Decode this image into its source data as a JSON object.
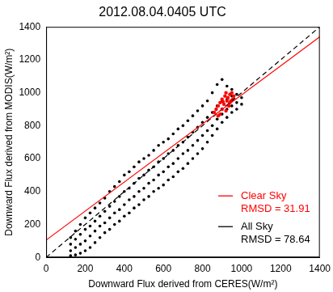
{
  "chart_data": {
    "type": "scatter",
    "title": "2012.08.04.0405 UTC",
    "x_label": "Downward Flux derived from CERES(W/m²)",
    "y_label": "Downward Flux derived from MODIS(W/m²)",
    "xlim": [
      0,
      1400
    ],
    "xticks": [
      0,
      200,
      400,
      600,
      800,
      1000,
      1200,
      1400
    ],
    "ylim": [
      0,
      1400
    ],
    "yticks": [
      0,
      200,
      400,
      600,
      800,
      1000,
      1200,
      1400
    ],
    "grid": false,
    "legend": "lower right",
    "series": [
      {
        "type": "line",
        "color": "#ff0000",
        "line_style": "solid",
        "values": [
          [
            0,
            105
          ],
          [
            1400,
            1340
          ]
        ]
      },
      {
        "type": "line",
        "color": "#000000",
        "line_style": "dashed",
        "values": [
          [
            0,
            0
          ],
          [
            1400,
            1400
          ]
        ]
      },
      {
        "name": "Clear Sky",
        "type": "scatter",
        "color": "#ff0000",
        "marker": "circle",
        "annotation": "RMSD = 31.91",
        "values": [
          [
            860,
            880
          ],
          [
            870,
            900
          ],
          [
            880,
            920
          ],
          [
            890,
            870
          ],
          [
            890,
            940
          ],
          [
            900,
            900
          ],
          [
            900,
            960
          ],
          [
            910,
            930
          ],
          [
            915,
            980
          ],
          [
            920,
            890
          ],
          [
            925,
            950
          ],
          [
            930,
            970
          ],
          [
            935,
            920
          ],
          [
            940,
            990
          ],
          [
            945,
            950
          ],
          [
            950,
            1000
          ],
          [
            955,
            960
          ],
          [
            960,
            980
          ],
          [
            880,
            860
          ],
          [
            905,
            945
          ],
          [
            920,
            1000
          ],
          [
            940,
            940
          ]
        ]
      },
      {
        "name": "All Sky",
        "type": "scatter",
        "color": "#000000",
        "marker": "circle",
        "annotation": "RMSD = 78.64",
        "values": [
          [
            125,
            10
          ],
          [
            125,
            40
          ],
          [
            125,
            80
          ],
          [
            125,
            120
          ],
          [
            150,
            15
          ],
          [
            150,
            60
          ],
          [
            150,
            110
          ],
          [
            150,
            160
          ],
          [
            175,
            25
          ],
          [
            175,
            80
          ],
          [
            175,
            140
          ],
          [
            175,
            200
          ],
          [
            200,
            40
          ],
          [
            200,
            100
          ],
          [
            200,
            170
          ],
          [
            200,
            240
          ],
          [
            225,
            60
          ],
          [
            225,
            130
          ],
          [
            225,
            190
          ],
          [
            225,
            270
          ],
          [
            250,
            90
          ],
          [
            250,
            160
          ],
          [
            250,
            220
          ],
          [
            250,
            300
          ],
          [
            275,
            120
          ],
          [
            275,
            190
          ],
          [
            275,
            250
          ],
          [
            275,
            330
          ],
          [
            300,
            150
          ],
          [
            300,
            210
          ],
          [
            300,
            280
          ],
          [
            300,
            360
          ],
          [
            325,
            170
          ],
          [
            325,
            240
          ],
          [
            325,
            310
          ],
          [
            325,
            400
          ],
          [
            350,
            200
          ],
          [
            350,
            270
          ],
          [
            350,
            340
          ],
          [
            350,
            430
          ],
          [
            375,
            220
          ],
          [
            375,
            290
          ],
          [
            375,
            370
          ],
          [
            375,
            460
          ],
          [
            400,
            250
          ],
          [
            400,
            320
          ],
          [
            400,
            400
          ],
          [
            400,
            500
          ],
          [
            425,
            270
          ],
          [
            425,
            350
          ],
          [
            425,
            420
          ],
          [
            425,
            520
          ],
          [
            450,
            300
          ],
          [
            450,
            370
          ],
          [
            450,
            450
          ],
          [
            450,
            550
          ],
          [
            475,
            320
          ],
          [
            475,
            400
          ],
          [
            475,
            480
          ],
          [
            475,
            580
          ],
          [
            500,
            350
          ],
          [
            500,
            420
          ],
          [
            500,
            500
          ],
          [
            500,
            600
          ],
          [
            525,
            370
          ],
          [
            525,
            450
          ],
          [
            525,
            530
          ],
          [
            525,
            620
          ],
          [
            550,
            400
          ],
          [
            550,
            470
          ],
          [
            550,
            550
          ],
          [
            550,
            650
          ],
          [
            575,
            420
          ],
          [
            575,
            500
          ],
          [
            575,
            580
          ],
          [
            575,
            680
          ],
          [
            600,
            440
          ],
          [
            600,
            520
          ],
          [
            600,
            600
          ],
          [
            600,
            700
          ],
          [
            625,
            470
          ],
          [
            625,
            550
          ],
          [
            625,
            630
          ],
          [
            625,
            720
          ],
          [
            650,
            490
          ],
          [
            650,
            570
          ],
          [
            650,
            650
          ],
          [
            650,
            750
          ],
          [
            675,
            520
          ],
          [
            675,
            600
          ],
          [
            675,
            680
          ],
          [
            675,
            780
          ],
          [
            700,
            540
          ],
          [
            700,
            630
          ],
          [
            700,
            700
          ],
          [
            700,
            800
          ],
          [
            725,
            570
          ],
          [
            725,
            650
          ],
          [
            725,
            730
          ],
          [
            725,
            830
          ],
          [
            750,
            600
          ],
          [
            750,
            680
          ],
          [
            750,
            760
          ],
          [
            750,
            860
          ],
          [
            775,
            630
          ],
          [
            775,
            710
          ],
          [
            775,
            790
          ],
          [
            775,
            890
          ],
          [
            800,
            660
          ],
          [
            800,
            740
          ],
          [
            800,
            820
          ],
          [
            800,
            920
          ],
          [
            825,
            700
          ],
          [
            825,
            770
          ],
          [
            825,
            850
          ],
          [
            825,
            950
          ],
          [
            850,
            740
          ],
          [
            850,
            800
          ],
          [
            850,
            880
          ],
          [
            850,
            1000
          ],
          [
            875,
            780
          ],
          [
            875,
            840
          ],
          [
            875,
            920
          ],
          [
            875,
            1050
          ],
          [
            900,
            820
          ],
          [
            900,
            870
          ],
          [
            900,
            950
          ],
          [
            900,
            1080
          ],
          [
            925,
            850
          ],
          [
            925,
            900
          ],
          [
            925,
            960
          ],
          [
            925,
            1040
          ],
          [
            950,
            880
          ],
          [
            950,
            920
          ],
          [
            950,
            980
          ],
          [
            950,
            1020
          ],
          [
            975,
            900
          ],
          [
            975,
            940
          ],
          [
            975,
            990
          ],
          [
            1000,
            930
          ],
          [
            1000,
            970
          ]
        ]
      }
    ]
  }
}
